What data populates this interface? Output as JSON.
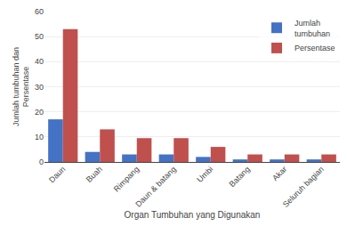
{
  "chart_data": {
    "type": "bar",
    "categories": [
      "Daun",
      "Buah",
      "Rimpang",
      "Daun & batang",
      "Umbi",
      "Batang",
      "Akar",
      "Seluruh bagian"
    ],
    "series": [
      {
        "name": "Jumlah\ntumbuhan",
        "color": "#4472C4",
        "values": [
          17,
          4,
          3,
          3,
          2,
          1,
          1,
          1
        ]
      },
      {
        "name": "Persentase",
        "color": "#C0504D",
        "values": [
          53,
          13,
          9.5,
          9.5,
          6,
          3,
          3,
          3
        ]
      }
    ],
    "xlabel": "Organ Tumbuhan yang Digunakan",
    "ylabel": "Jumlah tumbuhan dan\nPersentase",
    "ylim": [
      0,
      60
    ],
    "yticks": [
      0,
      10,
      20,
      30,
      40,
      50,
      60
    ],
    "grid": true,
    "legend": "upper right"
  }
}
